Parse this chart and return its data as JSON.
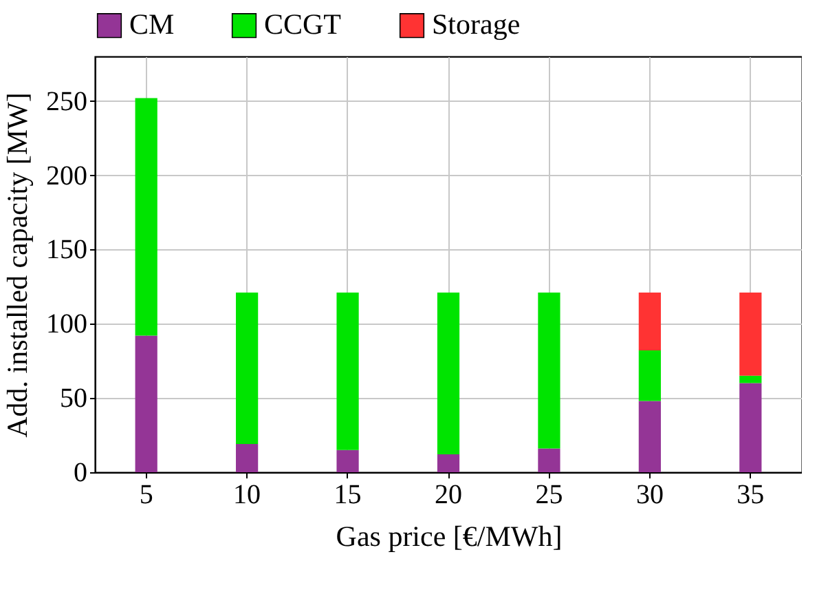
{
  "chart_data": {
    "type": "bar",
    "stacked": true,
    "xlabel": "Gas price [€/MWh]",
    "ylabel": "Add. installed capacity [MW]",
    "categories": [
      "5",
      "10",
      "15",
      "20",
      "25",
      "30",
      "35"
    ],
    "series": [
      {
        "name": "CM",
        "color": "#943596",
        "values": [
          92,
          19,
          15,
          12,
          16,
          48,
          60
        ]
      },
      {
        "name": "CCGT",
        "color": "#00e400",
        "values": [
          160,
          102,
          106,
          109,
          105,
          34,
          5
        ]
      },
      {
        "name": "Storage",
        "color": "#ff3333",
        "values": [
          0,
          0,
          0,
          0,
          0,
          39,
          56
        ]
      }
    ],
    "ylim": [
      0,
      280
    ],
    "yticks": [
      0,
      50,
      100,
      150,
      200,
      250
    ],
    "grid": true,
    "legend": "top"
  }
}
